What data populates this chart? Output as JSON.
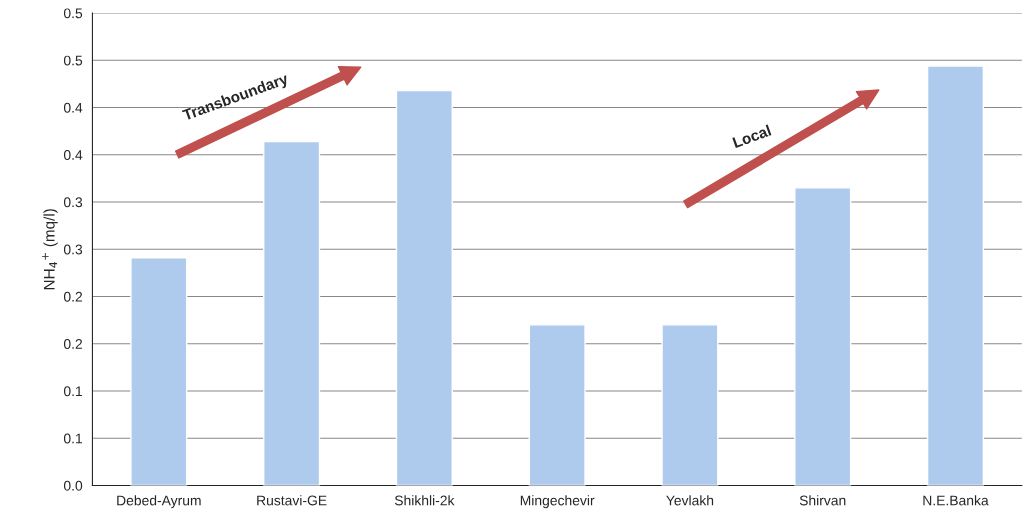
{
  "chart_data": {
    "type": "bar",
    "ylabel": "NH$_{4}$$^{+}$ (mq/l)",
    "categories": [
      "Debed-Ayrum",
      "Rustavi-GE",
      "Shikhli-2k",
      "Mingechevir",
      "Yevlakh",
      "Shirvan",
      "N.E.Banka"
    ],
    "values": [
      0.241,
      0.364,
      0.418,
      0.17,
      0.17,
      0.315,
      0.444
    ],
    "color": "#aecbee",
    "ylim": [
      0,
      0.5
    ],
    "yticks": [
      {
        "value": 0,
        "label": "0.0"
      },
      {
        "value": 0.05,
        "label": "0.1"
      },
      {
        "value": 0.1,
        "label": "0.1"
      },
      {
        "value": 0.15,
        "label": "0.2"
      },
      {
        "value": 0.2,
        "label": "0.2"
      },
      {
        "value": 0.25,
        "label": "0.3"
      },
      {
        "value": 0.3,
        "label": "0.3"
      },
      {
        "value": 0.35,
        "label": "0.4"
      },
      {
        "value": 0.4,
        "label": "0.4"
      },
      {
        "value": 0.45,
        "label": "0.5"
      },
      {
        "value": 0.5,
        "label": "0.5"
      }
    ],
    "grid": "y",
    "annotations": [
      "Transboundary",
      "Local"
    ]
  }
}
